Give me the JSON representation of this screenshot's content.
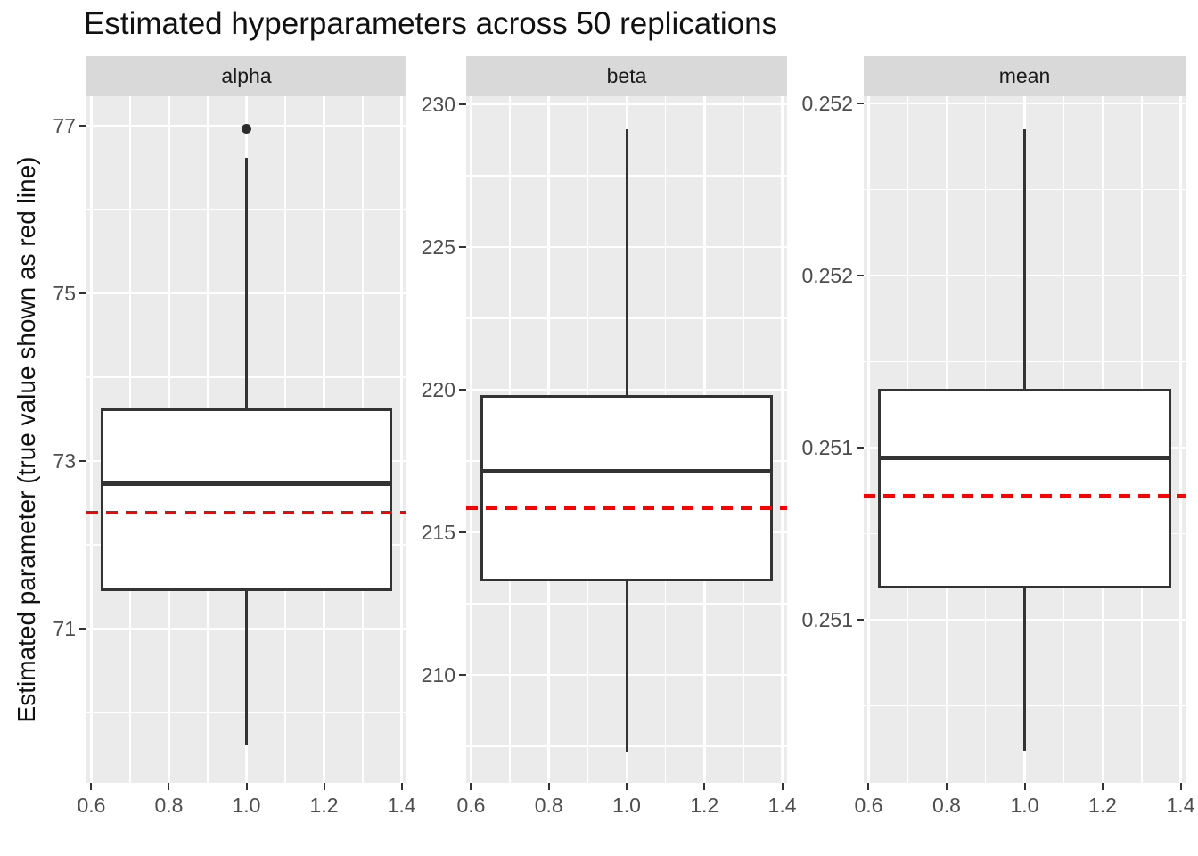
{
  "title": "Estimated hyperparameters across 50 replications",
  "y_axis_title": "Estimated parameter (true value shown as red line)",
  "colors": {
    "panel_background": "#ebebeb",
    "strip_background": "#d9d9d9",
    "gridline": "#ffffff",
    "box_stroke": "#333333",
    "true_value_line": "#ff0000",
    "axis_text": "#4d4d4d",
    "title_text": "#111111"
  },
  "chart_data": {
    "type": "boxplot",
    "title": "Estimated hyperparameters across 50 replications",
    "ylabel": "Estimated parameter (true value shown as red line)",
    "legend": "none",
    "grid": "on",
    "x_axis": {
      "domain": [
        0.5875,
        1.4125
      ],
      "ticks": [
        0.6,
        0.8,
        1.0,
        1.2,
        1.4
      ],
      "tick_labels": [
        "0.6",
        "0.8",
        "1.0",
        "1.2",
        "1.4"
      ],
      "minor_ticks": [
        0.7,
        0.9,
        1.1,
        1.3
      ],
      "box_x_range": [
        0.625,
        1.375
      ],
      "box_center_x": 1.0
    },
    "panels": [
      {
        "label": "alpha",
        "y_domain": [
          69.16,
          77.351
        ],
        "y_ticks": [
          {
            "value": 77,
            "label": "77"
          },
          {
            "value": 75,
            "label": "75"
          },
          {
            "value": 73,
            "label": "73"
          },
          {
            "value": 71,
            "label": "71"
          }
        ],
        "y_minor": [
          70,
          72,
          74,
          76
        ],
        "box": {
          "whisker_min": 69.62,
          "q1": 71.45,
          "median": 72.73,
          "q3": 73.63,
          "whisker_max": 76.62
        },
        "outliers": [
          76.96
        ],
        "true_value": 72.38
      },
      {
        "label": "beta",
        "y_domain": [
          206.219,
          230.281
        ],
        "y_ticks": [
          {
            "value": 230,
            "label": "230"
          },
          {
            "value": 225,
            "label": "225"
          },
          {
            "value": 220,
            "label": "220"
          },
          {
            "value": 215,
            "label": "215"
          },
          {
            "value": 210,
            "label": "210"
          }
        ],
        "y_minor": [
          207.5,
          212.5,
          217.5,
          222.5,
          227.5
        ],
        "box": {
          "whisker_min": 207.31,
          "q1": 213.28,
          "median": 217.13,
          "q3": 219.8,
          "whisker_max": 229.12
        },
        "outliers": [],
        "true_value": 215.85
      },
      {
        "label": "mean",
        "y_domain": [
          0.2500259,
          0.2520207
        ],
        "y_ticks": [
          {
            "value": 0.252,
            "label": "0.252"
          },
          {
            "value": 0.2515,
            "label": "0.252"
          },
          {
            "value": 0.251,
            "label": "0.251"
          },
          {
            "value": 0.2505,
            "label": "0.251"
          }
        ],
        "y_minor": [
          0.25025,
          0.25075,
          0.25125,
          0.25175
        ],
        "box": {
          "whisker_min": 0.25012,
          "q1": 0.25059,
          "median": 0.25097,
          "q3": 0.25117,
          "whisker_max": 0.251925
        },
        "outliers": [],
        "true_value": 0.25086
      }
    ]
  }
}
